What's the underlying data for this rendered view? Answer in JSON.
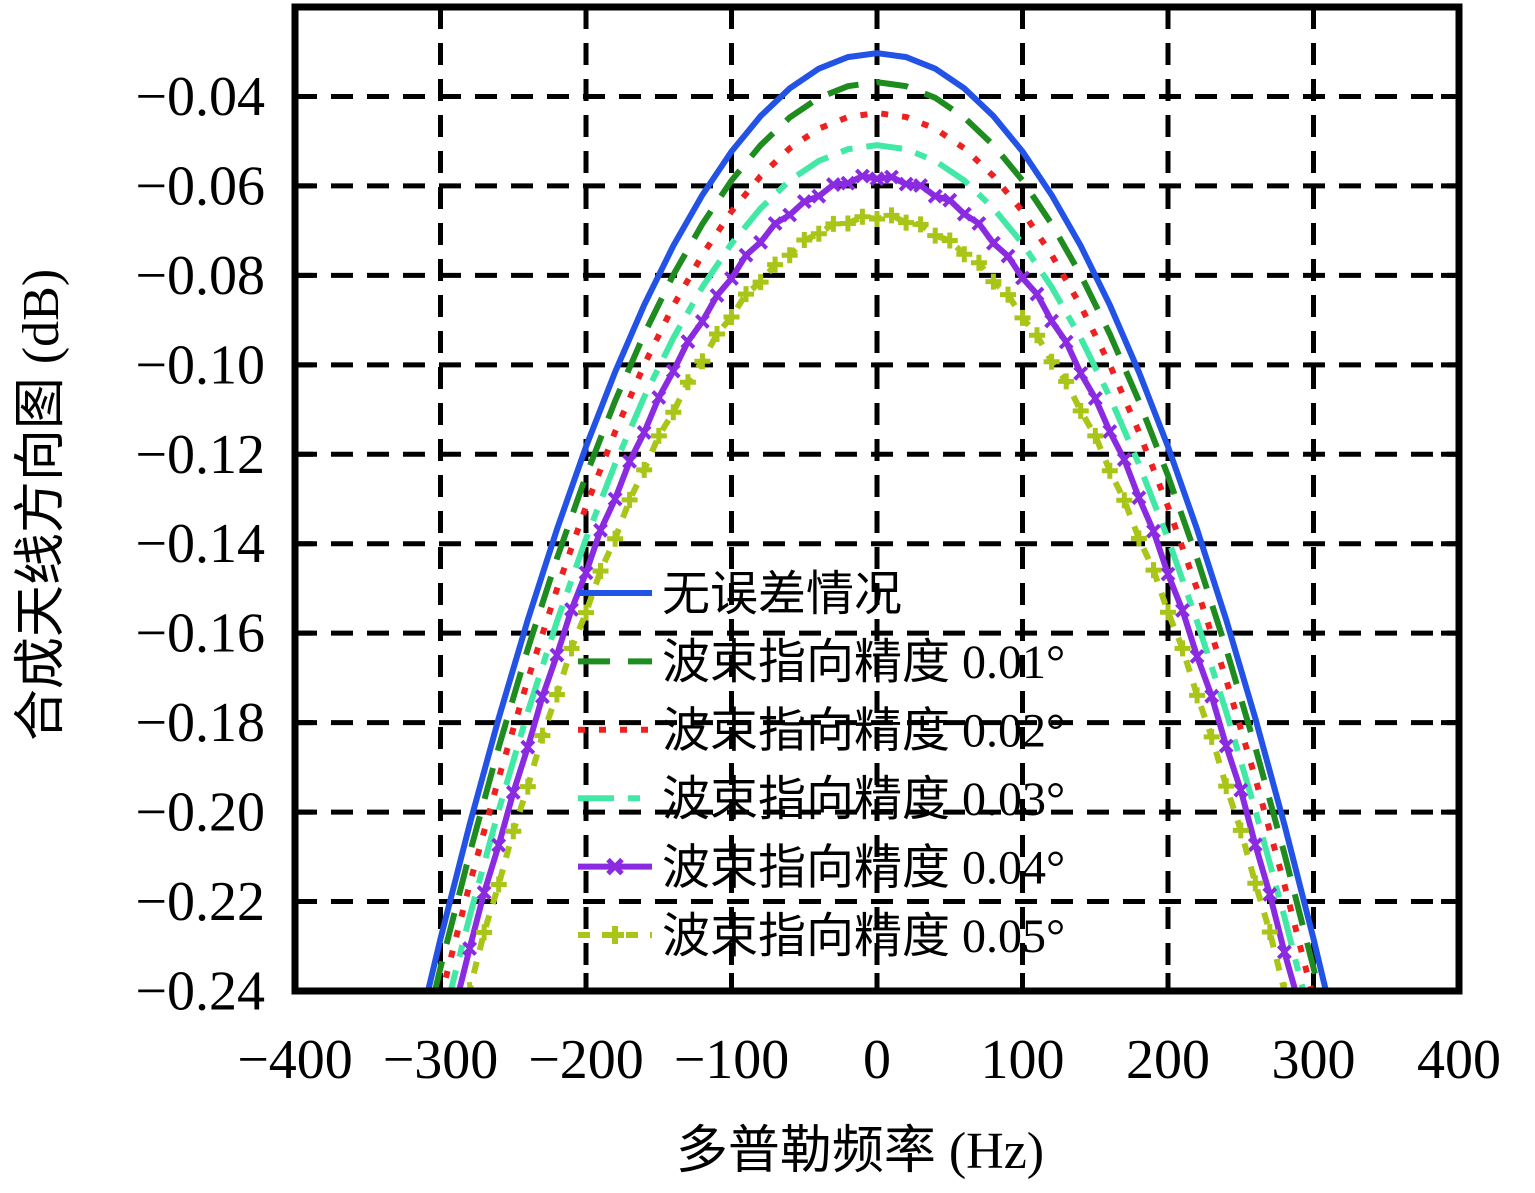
{
  "chart_data": {
    "type": "line",
    "title": "",
    "xlabel": "多普勒频率 (Hz)",
    "ylabel": "合成天线方向图 (dB)",
    "xlim": [
      -400,
      400
    ],
    "ylim": [
      -0.24,
      -0.02
    ],
    "grid": "dashed-black",
    "legend_position": "inside-center-left",
    "background": "#ffffff",
    "axis_color": "#000000",
    "xticks": [
      -400,
      -300,
      -200,
      -100,
      0,
      100,
      200,
      300,
      400
    ],
    "xtick_labels": [
      "−400",
      "−300",
      "−200",
      "−100",
      "0",
      "100",
      "200",
      "300",
      "400"
    ],
    "yticks": [
      -0.04,
      -0.06,
      -0.08,
      -0.1,
      -0.12,
      -0.14,
      -0.16,
      -0.18,
      -0.2,
      -0.22,
      -0.24
    ],
    "ytick_labels": [
      "−0.04",
      "−0.06",
      "−0.08",
      "−0.10",
      "−0.12",
      "−0.14",
      "−0.16",
      "−0.18",
      "−0.20",
      "−0.22",
      "−0.24"
    ],
    "grid_x": [
      -300,
      -200,
      -100,
      0,
      100,
      200,
      300
    ],
    "grid_y": [
      -0.04,
      -0.06,
      -0.08,
      -0.1,
      -0.12,
      -0.14,
      -0.16,
      -0.18,
      -0.2,
      -0.22
    ],
    "series": [
      {
        "name": "无误差情况",
        "color": "#2353e6",
        "style": "solid",
        "marker": "none",
        "peak_db": -0.0303,
        "x": [
          -320,
          -300,
          -280,
          -260,
          -240,
          -220,
          -200,
          -180,
          -160,
          -140,
          -120,
          -100,
          -80,
          -60,
          -40,
          -20,
          0,
          20,
          40,
          60,
          80,
          100,
          120,
          140,
          160,
          180,
          200,
          220,
          240,
          260,
          280,
          300,
          320
        ],
        "y": [
          -0.2556,
          -0.2283,
          -0.2028,
          -0.179,
          -0.157,
          -0.1368,
          -0.1183,
          -0.1016,
          -0.0866,
          -0.0734,
          -0.062,
          -0.0523,
          -0.0444,
          -0.0382,
          -0.0338,
          -0.0312,
          -0.0303,
          -0.0312,
          -0.0338,
          -0.0382,
          -0.0444,
          -0.0523,
          -0.062,
          -0.0734,
          -0.0866,
          -0.1016,
          -0.1183,
          -0.1368,
          -0.157,
          -0.179,
          -0.2028,
          -0.2283,
          -0.2556
        ]
      },
      {
        "name": "波束指向精度 0.01°",
        "color": "#1f8c1f",
        "style": "long-dash",
        "marker": "none",
        "peak_db": -0.0368,
        "x": [
          -320,
          -300,
          -280,
          -260,
          -240,
          -220,
          -200,
          -180,
          -160,
          -140,
          -120,
          -100,
          -80,
          -60,
          -40,
          -20,
          0,
          20,
          40,
          60,
          80,
          100,
          120,
          140,
          160,
          180,
          200,
          220,
          240,
          260,
          280,
          300,
          320
        ],
        "y": [
          -0.2621,
          -0.2348,
          -0.2093,
          -0.1855,
          -0.1635,
          -0.1433,
          -0.1248,
          -0.1081,
          -0.0931,
          -0.0799,
          -0.0685,
          -0.0588,
          -0.0509,
          -0.0447,
          -0.0403,
          -0.0377,
          -0.0368,
          -0.0377,
          -0.0403,
          -0.0447,
          -0.0509,
          -0.0588,
          -0.0685,
          -0.0799,
          -0.0931,
          -0.1081,
          -0.1248,
          -0.1433,
          -0.1635,
          -0.1855,
          -0.2093,
          -0.2348,
          -0.2621
        ]
      },
      {
        "name": "波束指向精度 0.02°",
        "color": "#ee2020",
        "style": "dotted",
        "marker": "none",
        "peak_db": -0.0437,
        "x": [
          -320,
          -300,
          -280,
          -260,
          -240,
          -220,
          -200,
          -180,
          -160,
          -140,
          -120,
          -100,
          -80,
          -60,
          -40,
          -20,
          0,
          20,
          40,
          60,
          80,
          100,
          120,
          140,
          160,
          180,
          200,
          220,
          240,
          260,
          280,
          300,
          320
        ],
        "y": [
          -0.269,
          -0.2417,
          -0.2162,
          -0.1924,
          -0.1704,
          -0.1502,
          -0.1317,
          -0.115,
          -0.1,
          -0.0868,
          -0.0754,
          -0.0657,
          -0.0578,
          -0.0516,
          -0.0472,
          -0.0446,
          -0.0437,
          -0.0446,
          -0.0472,
          -0.0516,
          -0.0578,
          -0.0657,
          -0.0754,
          -0.0868,
          -0.1,
          -0.115,
          -0.1317,
          -0.1502,
          -0.1704,
          -0.1924,
          -0.2162,
          -0.2417,
          -0.269
        ]
      },
      {
        "name": "波束指向精度 0.03°",
        "color": "#42e8a6",
        "style": "dash-dot",
        "marker": "none",
        "peak_db": -0.0509,
        "x": [
          -320,
          -300,
          -280,
          -260,
          -240,
          -220,
          -200,
          -180,
          -160,
          -140,
          -120,
          -100,
          -80,
          -60,
          -40,
          -20,
          0,
          20,
          40,
          60,
          80,
          100,
          120,
          140,
          160,
          180,
          200,
          220,
          240,
          260,
          280,
          300,
          320
        ],
        "y": [
          -0.2762,
          -0.2489,
          -0.2234,
          -0.1996,
          -0.1776,
          -0.1574,
          -0.1389,
          -0.1222,
          -0.1072,
          -0.094,
          -0.0826,
          -0.0729,
          -0.065,
          -0.0588,
          -0.0544,
          -0.0518,
          -0.0509,
          -0.0518,
          -0.0544,
          -0.0588,
          -0.065,
          -0.0729,
          -0.0826,
          -0.094,
          -0.1072,
          -0.1222,
          -0.1389,
          -0.1574,
          -0.1776,
          -0.1996,
          -0.2234,
          -0.2489,
          -0.2762
        ]
      },
      {
        "name": "波束指向精度 0.04°",
        "color": "#8a2be2",
        "style": "solid",
        "marker": "x",
        "peak_db": -0.0582,
        "x": [
          -300,
          -290,
          -280,
          -270,
          -260,
          -250,
          -240,
          -230,
          -220,
          -210,
          -200,
          -190,
          -180,
          -170,
          -160,
          -150,
          -140,
          -130,
          -120,
          -110,
          -100,
          -90,
          -80,
          -70,
          -60,
          -50,
          -40,
          -30,
          -20,
          -10,
          0,
          10,
          20,
          30,
          40,
          50,
          60,
          70,
          80,
          90,
          100,
          110,
          120,
          130,
          140,
          150,
          160,
          170,
          180,
          190,
          200,
          210,
          220,
          230,
          240,
          250,
          260,
          270,
          280,
          290,
          300
        ],
        "y": [
          -0.2559,
          -0.2436,
          -0.2305,
          -0.218,
          -0.2074,
          -0.1956,
          -0.1855,
          -0.1742,
          -0.1649,
          -0.1547,
          -0.1465,
          -0.137,
          -0.13,
          -0.1216,
          -0.1151,
          -0.1073,
          -0.1014,
          -0.0948,
          -0.0903,
          -0.0845,
          -0.0807,
          -0.0755,
          -0.0726,
          -0.0684,
          -0.0665,
          -0.0635,
          -0.0623,
          -0.0597,
          -0.0594,
          -0.0578,
          -0.0584,
          -0.058,
          -0.0596,
          -0.0599,
          -0.0623,
          -0.0632,
          -0.0663,
          -0.0684,
          -0.0728,
          -0.0757,
          -0.0806,
          -0.0842,
          -0.0902,
          -0.0949,
          -0.1019,
          -0.1075,
          -0.1149,
          -0.1212,
          -0.1297,
          -0.1372,
          -0.1468,
          -0.1549,
          -0.1652,
          -0.1741,
          -0.1852,
          -0.1951,
          -0.2073,
          -0.2184,
          -0.2313,
          -0.2428,
          -0.2564
        ]
      },
      {
        "name": "波束指向精度 0.05°",
        "color": "#a9c517",
        "style": "dash",
        "marker": "plus",
        "peak_db": -0.067,
        "x": [
          -290,
          -280,
          -270,
          -260,
          -250,
          -240,
          -230,
          -220,
          -210,
          -200,
          -190,
          -180,
          -170,
          -160,
          -150,
          -140,
          -130,
          -120,
          -110,
          -100,
          -90,
          -80,
          -70,
          -60,
          -50,
          -40,
          -30,
          -20,
          -10,
          0,
          10,
          20,
          30,
          40,
          50,
          60,
          70,
          80,
          90,
          100,
          110,
          120,
          130,
          140,
          150,
          160,
          170,
          180,
          190,
          200,
          210,
          220,
          230,
          240,
          250,
          260,
          270,
          280,
          290
        ],
        "y": [
          -0.2516,
          -0.2398,
          -0.2269,
          -0.2162,
          -0.2043,
          -0.1943,
          -0.1829,
          -0.1737,
          -0.1634,
          -0.1554,
          -0.1461,
          -0.1389,
          -0.1302,
          -0.1235,
          -0.1159,
          -0.1106,
          -0.1039,
          -0.0992,
          -0.0931,
          -0.0893,
          -0.0842,
          -0.0815,
          -0.0776,
          -0.0755,
          -0.0721,
          -0.0707,
          -0.0685,
          -0.0684,
          -0.0669,
          -0.0674,
          -0.0666,
          -0.0682,
          -0.0686,
          -0.0711,
          -0.0722,
          -0.0753,
          -0.0772,
          -0.0814,
          -0.0843,
          -0.0895,
          -0.0934,
          -0.0993,
          -0.1037,
          -0.1103,
          -0.1159,
          -0.1237,
          -0.1303,
          -0.1388,
          -0.1459,
          -0.1553,
          -0.1634,
          -0.1739,
          -0.1832,
          -0.1942,
          -0.2041,
          -0.2159,
          -0.2268,
          -0.2399,
          -0.2517
        ]
      }
    ]
  }
}
